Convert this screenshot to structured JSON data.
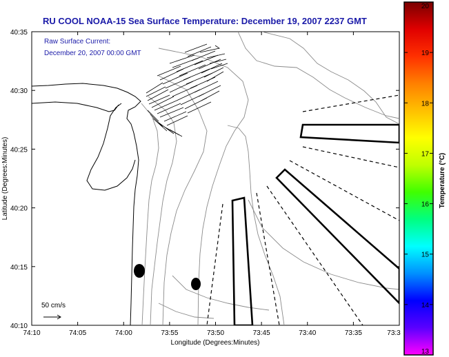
{
  "title": "RU COOL  NOAA-15  Sea Surface Temperature:  December 19, 2007 2237 GMT",
  "current_label": {
    "line1": "Raw Surface Current:",
    "line2": "December 20, 2007 00:00 GMT"
  },
  "axes": {
    "xlabel": "Longitude (Degrees:Minutes)",
    "ylabel": "Latitude (Degrees:Minutes)",
    "x_ticks": [
      "74:10",
      "74:05",
      "74:00",
      "73:55",
      "73:50",
      "73:45",
      "73:40",
      "73:35",
      "73:3"
    ],
    "y_ticks": [
      "40:35",
      "40:30",
      "40:25",
      "40:20",
      "40:15",
      "40:10"
    ]
  },
  "scale_label": "50 cm/s",
  "colorbar": {
    "label": "Temperature (°C)",
    "ticks": [
      "20",
      "19",
      "18",
      "17",
      "16",
      "15",
      "14",
      "13"
    ],
    "min": 13,
    "max": 20,
    "colors": [
      "#ff00ff",
      "#5a00ff",
      "#0000ff",
      "#0090ff",
      "#00ffff",
      "#00ff80",
      "#40ff00",
      "#c0ff00",
      "#ffff00",
      "#ffc000",
      "#ff8000",
      "#ff3000",
      "#e00000",
      "#7a0000"
    ]
  },
  "colors": {
    "title": "#1a1aa8",
    "contour": "#8a8a8a",
    "coast": "#000000"
  }
}
